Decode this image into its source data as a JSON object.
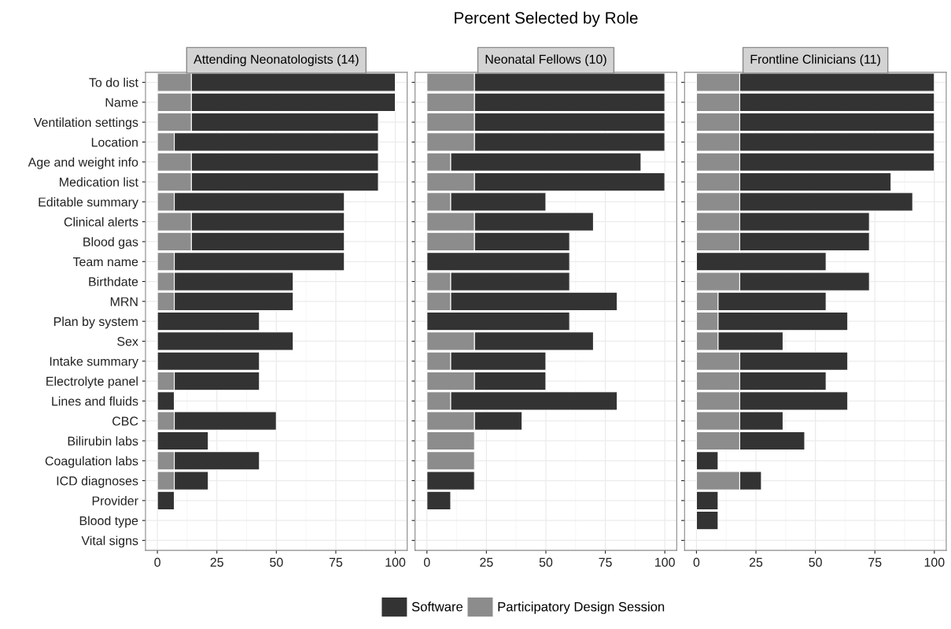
{
  "chart_data": [
    {
      "type": "bar",
      "orientation": "horizontal",
      "stacked": true,
      "subtitle": "Attending Neonatologists (14)",
      "legend": "bottom",
      "grid": true,
      "xlim": [
        -5,
        105
      ],
      "xticks": [
        0,
        25,
        50,
        75,
        100
      ],
      "categories": [
        "To do list",
        "Name",
        "Ventilation settings",
        "Location",
        "Age and weight info",
        "Medication list",
        "Editable summary",
        "Clinical alerts",
        "Blood gas",
        "Team name",
        "Birthdate",
        "MRN",
        "Plan by system",
        "Sex",
        "Intake summary",
        "Electrolyte panel",
        "Lines and fluids",
        "CBC",
        "Bilirubin labs",
        "Coagulation labs",
        "ICD diagnoses",
        "Provider",
        "Blood type",
        "Vital signs"
      ],
      "series": [
        {
          "name": "Participatory Design Session",
          "color": "#8c8c8c",
          "values": [
            14.3,
            14.3,
            14.3,
            7.1,
            14.3,
            14.3,
            7.1,
            14.3,
            14.3,
            7.1,
            7.1,
            7.1,
            0,
            0,
            0,
            7.1,
            0,
            7.1,
            0,
            7.1,
            7.1,
            0,
            0,
            0
          ]
        },
        {
          "name": "Software",
          "color": "#333333",
          "values": [
            85.7,
            85.7,
            78.6,
            85.8,
            78.6,
            78.6,
            71.5,
            64.3,
            64.3,
            71.5,
            50,
            50,
            42.9,
            57.1,
            42.9,
            35.8,
            7.1,
            42.9,
            21.4,
            35.8,
            14.3,
            7.1,
            0,
            0
          ]
        }
      ]
    },
    {
      "type": "bar",
      "orientation": "horizontal",
      "stacked": true,
      "title": "Percent Selected by Role",
      "subtitle": "Neonatal Fellows (10)",
      "tick_labels": "x",
      "grid": true,
      "xlim": [
        -5,
        105
      ],
      "xticks": [
        0,
        25,
        50,
        75,
        100
      ],
      "categories": [
        null,
        null,
        null,
        null,
        null,
        null,
        null,
        null,
        null,
        null,
        null,
        null,
        null,
        null,
        null,
        null,
        null,
        null,
        null,
        null,
        null,
        null,
        null,
        null
      ],
      "series": [
        {
          "color": "#8c8c8c",
          "values": [
            20,
            20,
            20,
            20,
            10,
            20,
            10,
            20,
            20,
            0,
            10,
            10,
            0,
            20,
            10,
            20,
            10,
            20,
            20,
            20,
            0,
            0,
            0,
            0
          ]
        },
        {
          "color": "#333333",
          "values": [
            80,
            80,
            80,
            80,
            80,
            80,
            40,
            50,
            40,
            60,
            50,
            70,
            60,
            50,
            40,
            30,
            70,
            20,
            0,
            0,
            20,
            10,
            0,
            0
          ]
        }
      ]
    },
    {
      "type": "bar",
      "orientation": "horizontal",
      "stacked": true,
      "subtitle": "Frontline Clinicians (11)",
      "tick_labels": "x",
      "grid": true,
      "xlim": [
        -5,
        105
      ],
      "xticks": [
        0,
        25,
        50,
        75,
        100
      ],
      "categories": [
        null,
        null,
        null,
        null,
        null,
        null,
        null,
        null,
        null,
        null,
        null,
        null,
        null,
        null,
        null,
        null,
        null,
        null,
        null,
        null,
        null,
        null,
        null,
        null
      ],
      "series": [
        {
          "color": "#8c8c8c",
          "values": [
            18.2,
            18.2,
            18.2,
            18.2,
            18.2,
            18.2,
            18.2,
            18.2,
            18.2,
            0,
            18.2,
            9.1,
            9.1,
            9.1,
            18.2,
            18.2,
            18.2,
            18.2,
            18.2,
            0,
            18.2,
            0,
            0,
            0
          ]
        },
        {
          "color": "#333333",
          "values": [
            81.8,
            81.8,
            81.8,
            81.8,
            81.8,
            63.6,
            72.7,
            54.5,
            54.5,
            54.5,
            54.5,
            45.4,
            54.5,
            27.3,
            45.4,
            36.3,
            45.4,
            18.2,
            27.3,
            9.1,
            9.1,
            9.1,
            9.1,
            0
          ]
        }
      ]
    }
  ]
}
